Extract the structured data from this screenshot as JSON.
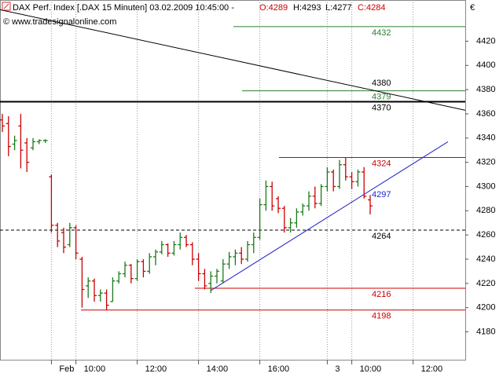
{
  "chart_data": {
    "type": "ohlc",
    "header": {
      "instrument": "DAX Perf. Index [.DAX  15 Minuten] 03.02.2009 10:45:00 -",
      "open": "O:4289",
      "high": "H:4293",
      "low": "L:4277",
      "close": "C:4284"
    },
    "watermark": "© www.tradesignalonline.com",
    "currency": "€",
    "up_color": "#1a7a1a",
    "down_color": "#cc0000",
    "categories": [
      null,
      null,
      null,
      null,
      null,
      null,
      null,
      null,
      "Feb",
      null,
      null,
      null,
      "10:00",
      null,
      null,
      null,
      null,
      null,
      null,
      null,
      null,
      null,
      "12:00",
      null,
      null,
      null,
      null,
      null,
      null,
      null,
      null,
      null,
      "14:00",
      null,
      null,
      null,
      null,
      null,
      null,
      null,
      null,
      null,
      "16:00",
      null,
      null,
      null,
      null,
      null,
      null,
      null,
      null,
      null,
      null,
      "3",
      null,
      null,
      null,
      "10:00",
      null,
      null,
      null,
      null,
      null,
      null,
      null,
      null,
      null,
      "12:00",
      null,
      null,
      null,
      null,
      null,
      null,
      null,
      null
    ],
    "open": [
      4355,
      4352,
      4335,
      4350,
      4336,
      4332,
      4337,
      4338,
      4308,
      4268,
      4262,
      4252,
      4266,
      4240,
      4218,
      4222,
      4210,
      4212,
      4205,
      4222,
      4228,
      4235,
      4224,
      4238,
      4230,
      4242,
      4246,
      4252,
      4245,
      4252,
      4258,
      4252,
      4240,
      4228,
      4220,
      4226,
      4222,
      4236,
      4242,
      4245,
      4240,
      4252,
      4258,
      4285,
      4300,
      4290,
      4282,
      4266,
      4270,
      4279,
      4284,
      4292,
      4286,
      4300,
      4312,
      4300,
      4318,
      4308,
      4304,
      4312,
      4289,
      null,
      null,
      null,
      null,
      null,
      null,
      null,
      null,
      null,
      null,
      null,
      null,
      null,
      null,
      null
    ],
    "high": [
      4360,
      4358,
      4342,
      4360,
      4340,
      4340,
      4339,
      4339,
      4310,
      4270,
      4266,
      4270,
      4268,
      4242,
      4225,
      4224,
      4215,
      4215,
      4225,
      4230,
      4238,
      4236,
      4240,
      4240,
      4245,
      4248,
      4255,
      4253,
      4255,
      4262,
      4260,
      4254,
      4245,
      4232,
      4230,
      4232,
      4240,
      4246,
      4248,
      4250,
      4255,
      4262,
      4290,
      4305,
      4304,
      4292,
      4284,
      4274,
      4282,
      4286,
      4296,
      4300,
      4302,
      4316,
      4314,
      4322,
      4324,
      4312,
      4314,
      4316,
      4293,
      null,
      null,
      null,
      null,
      null,
      null,
      null,
      null,
      null,
      null,
      null,
      null,
      null,
      null,
      null
    ],
    "low": [
      4345,
      4325,
      4330,
      4315,
      4312,
      4330,
      4335,
      4336,
      4262,
      4250,
      4245,
      4250,
      4240,
      4200,
      4208,
      4205,
      4205,
      4198,
      4205,
      4220,
      4225,
      4220,
      4222,
      4225,
      4228,
      4235,
      4244,
      4242,
      4243,
      4248,
      4250,
      4235,
      4222,
      4215,
      4212,
      4220,
      4220,
      4232,
      4235,
      4236,
      4238,
      4245,
      4256,
      4280,
      4280,
      4278,
      4262,
      4262,
      4266,
      4276,
      4280,
      4282,
      4284,
      4296,
      4296,
      4298,
      4305,
      4298,
      4300,
      4290,
      4277,
      null,
      null,
      null,
      null,
      null,
      null,
      null,
      null,
      null,
      null,
      null,
      null,
      null,
      null,
      null
    ],
    "close": [
      4350,
      4333,
      4338,
      4330,
      4320,
      4337,
      4338,
      4338,
      4268,
      4255,
      4250,
      4266,
      4245,
      4215,
      4222,
      4210,
      4212,
      4202,
      4222,
      4228,
      4235,
      4224,
      4238,
      4230,
      4242,
      4246,
      4252,
      4245,
      4252,
      4258,
      4252,
      4240,
      4228,
      4218,
      4226,
      4230,
      4236,
      4242,
      4245,
      4240,
      4252,
      4258,
      4285,
      4300,
      4284,
      4282,
      4266,
      4270,
      4279,
      4284,
      4292,
      4286,
      4300,
      4312,
      4300,
      4318,
      4308,
      4304,
      4312,
      4292,
      4284,
      null,
      null,
      null,
      null,
      null,
      null,
      null,
      null,
      null,
      null,
      null,
      null,
      null,
      null,
      null
    ],
    "levels": [
      {
        "value": 4432,
        "color": "#2e7d32"
      },
      {
        "value": 4379,
        "color": "#2e7d32"
      },
      {
        "value": 4370,
        "color": "#000000"
      },
      {
        "value": 4264,
        "color": "#000000",
        "dashed": true
      },
      {
        "value": 4324,
        "color": "#cc0000"
      },
      {
        "value": 4216,
        "color": "#cc0000"
      },
      {
        "value": 4198,
        "color": "#cc0000"
      }
    ],
    "trendlines": [
      {
        "color": "#000000",
        "from": 4446,
        "to": 4363,
        "value": 4380
      },
      {
        "color": "#2222cc",
        "from": 4214,
        "to": 4337,
        "value": 4297
      }
    ],
    "ylim": [
      4157,
      4454
    ],
    "yticks": [
      4180,
      4200,
      4220,
      4240,
      4260,
      4280,
      4300,
      4320,
      4340,
      4360,
      4380,
      4400,
      4420
    ]
  }
}
